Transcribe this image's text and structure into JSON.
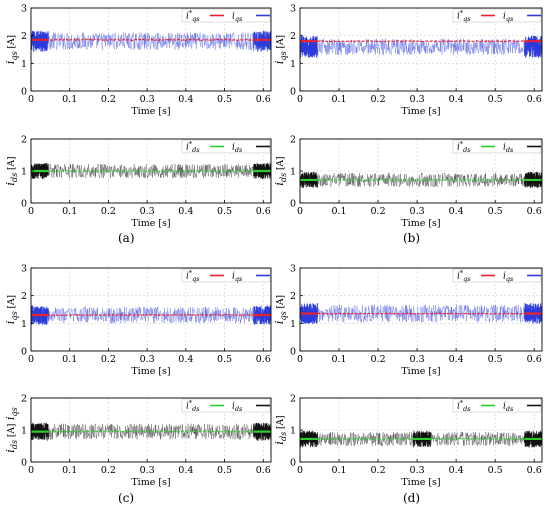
{
  "figure": {
    "panel_labels": [
      "(a)",
      "(b)",
      "(c)",
      "(d)"
    ]
  },
  "chart_data": [
    {
      "id": "a-top",
      "panel": "(a)",
      "type": "line",
      "xlabel": "Time [s]",
      "ylabel_main": "i",
      "ylabel_sub": "qs",
      "ylabel_unit": "[A]",
      "xlim": [
        0,
        0.62
      ],
      "ylim": [
        0,
        3
      ],
      "xticks": [
        "0",
        "0.1",
        "0.2",
        "0.3",
        "0.4",
        "0.5",
        "0.6"
      ],
      "yticks": [
        "0",
        "1",
        "2",
        "3"
      ],
      "grid": true,
      "legend_position": "top-right",
      "series": [
        {
          "name": "i*qs",
          "legend_main": "i",
          "legend_sup": "*",
          "legend_sub": "qs",
          "color": "#e8212e",
          "kind": "reference",
          "mean": 1.85,
          "spread": 0.06
        },
        {
          "name": "iqs",
          "legend_main": "i",
          "legend_sup": "",
          "legend_sub": "qs",
          "color": "#2b3bdb",
          "kind": "measured",
          "mean": 1.8,
          "spread": 0.32,
          "dense_spread": 0.38,
          "dense_windows": [
            [
              0,
              0.045
            ],
            [
              0.575,
              0.62
            ]
          ]
        }
      ]
    },
    {
      "id": "a-bottom",
      "panel": "(a)",
      "type": "line",
      "xlabel": "Time [s]",
      "ylabel_main": "i",
      "ylabel_sub": "ds",
      "ylabel_unit": "[A]",
      "xlim": [
        0,
        0.62
      ],
      "ylim": [
        0,
        2
      ],
      "xticks": [
        "0",
        "0.1",
        "0.2",
        "0.3",
        "0.4",
        "0.5",
        "0.6"
      ],
      "yticks": [
        "0",
        "1",
        "2"
      ],
      "grid": true,
      "legend_position": "top-right",
      "series": [
        {
          "name": "i*ds",
          "legend_main": "i",
          "legend_sup": "*",
          "legend_sub": "ds",
          "color": "#2ecc2e",
          "kind": "reference",
          "mean": 1.0,
          "spread": 0.03
        },
        {
          "name": "ids",
          "legend_main": "i",
          "legend_sup": "",
          "legend_sub": "ds",
          "color": "#111111",
          "kind": "measured",
          "mean": 1.0,
          "spread": 0.22,
          "dense_spread": 0.25,
          "dense_windows": [
            [
              0,
              0.045
            ],
            [
              0.575,
              0.62
            ]
          ]
        }
      ]
    },
    {
      "id": "b-top",
      "panel": "(b)",
      "type": "line",
      "xlabel": "Time [s]",
      "ylabel_main": "i",
      "ylabel_sub": "qs",
      "ylabel_unit": "[A]",
      "xlim": [
        0,
        0.62
      ],
      "ylim": [
        0,
        3
      ],
      "xticks": [
        "0",
        "0.1",
        "0.2",
        "0.3",
        "0.4",
        "0.5",
        "0.6"
      ],
      "yticks": [
        "0",
        "1",
        "2",
        "3"
      ],
      "grid": true,
      "legend_position": "top-right",
      "series": [
        {
          "name": "i*qs",
          "legend_main": "i",
          "legend_sup": "*",
          "legend_sub": "qs",
          "color": "#e8212e",
          "kind": "reference",
          "mean": 1.8,
          "spread": 0.05
        },
        {
          "name": "iqs",
          "legend_main": "i",
          "legend_sup": "",
          "legend_sub": "qs",
          "color": "#2b3bdb",
          "kind": "measured",
          "mean": 1.6,
          "spread": 0.3,
          "dense_spread": 0.4,
          "dense_windows": [
            [
              0,
              0.045
            ],
            [
              0.575,
              0.62
            ]
          ]
        }
      ]
    },
    {
      "id": "b-bottom",
      "panel": "(b)",
      "type": "line",
      "xlabel": "Time [s]",
      "ylabel_main": "i",
      "ylabel_sub": "ds",
      "ylabel_unit": "[A]",
      "xlim": [
        0,
        0.62
      ],
      "ylim": [
        0,
        2
      ],
      "xticks": [
        "0",
        "0.1",
        "0.2",
        "0.3",
        "0.4",
        "0.5",
        "0.6"
      ],
      "yticks": [
        "0",
        "1",
        "2"
      ],
      "grid": true,
      "legend_position": "top-right",
      "series": [
        {
          "name": "i*ds",
          "legend_main": "i",
          "legend_sup": "*",
          "legend_sub": "ds",
          "color": "#2ecc2e",
          "kind": "reference",
          "mean": 0.72,
          "spread": 0.03
        },
        {
          "name": "ids",
          "legend_main": "i",
          "legend_sup": "",
          "legend_sub": "ds",
          "color": "#111111",
          "kind": "measured",
          "mean": 0.72,
          "spread": 0.22,
          "dense_spread": 0.25,
          "dense_windows": [
            [
              0,
              0.045
            ],
            [
              0.575,
              0.62
            ]
          ]
        }
      ]
    },
    {
      "id": "c-top",
      "panel": "(c)",
      "type": "line",
      "xlabel": "Time [s]",
      "ylabel_main": "i",
      "ylabel_sub": "qs",
      "ylabel_unit": "[A]",
      "xlim": [
        0,
        0.62
      ],
      "ylim": [
        0,
        3
      ],
      "xticks": [
        "0",
        "0.1",
        "0.2",
        "0.3",
        "0.4",
        "0.5",
        "0.6"
      ],
      "yticks": [
        "0",
        "1",
        "2",
        "3"
      ],
      "grid": true,
      "legend_position": "top-right",
      "series": [
        {
          "name": "i*qs",
          "legend_main": "i",
          "legend_sup": "*",
          "legend_sub": "qs",
          "color": "#e8212e",
          "kind": "reference",
          "mean": 1.3,
          "spread": 0.04
        },
        {
          "name": "iqs",
          "legend_main": "i",
          "legend_sup": "",
          "legend_sub": "qs",
          "color": "#2b3bdb",
          "kind": "measured",
          "mean": 1.3,
          "spread": 0.3,
          "dense_spread": 0.35,
          "dense_windows": [
            [
              0,
              0.045
            ],
            [
              0.575,
              0.62
            ]
          ]
        }
      ]
    },
    {
      "id": "c-bottom",
      "panel": "(c)",
      "type": "line",
      "xlabel": "Time [s]",
      "ylabel_main": "i",
      "ylabel_sub": "ds",
      "ylabel_unit": "[A]",
      "ylabel_extra_main": "i",
      "ylabel_extra_sub": "qs",
      "xlim": [
        0,
        0.62
      ],
      "ylim": [
        0,
        2
      ],
      "xticks": [
        "0",
        "0.1",
        "0.2",
        "0.3",
        "0.4",
        "0.5",
        "0.6"
      ],
      "yticks": [
        "0",
        "1",
        "2"
      ],
      "grid": true,
      "legend_position": "top-right",
      "series": [
        {
          "name": "i*ds",
          "legend_main": "i",
          "legend_sup": "*",
          "legend_sub": "ds",
          "color": "#2ecc2e",
          "kind": "reference",
          "mean": 0.95,
          "spread": 0.03
        },
        {
          "name": "ids",
          "legend_main": "i",
          "legend_sup": "",
          "legend_sub": "ds",
          "color": "#111111",
          "kind": "measured",
          "mean": 0.95,
          "spread": 0.25,
          "dense_spread": 0.28,
          "dense_windows": [
            [
              0,
              0.045
            ],
            [
              0.575,
              0.62
            ]
          ]
        }
      ]
    },
    {
      "id": "d-top",
      "panel": "(d)",
      "type": "line",
      "xlabel": "Time [s]",
      "ylabel_main": "i",
      "ylabel_sub": "qs",
      "ylabel_unit": "[A]",
      "xlim": [
        0,
        0.62
      ],
      "ylim": [
        0,
        3
      ],
      "xticks": [
        "0",
        "0.1",
        "0.2",
        "0.3",
        "0.4",
        "0.5",
        "0.6"
      ],
      "yticks": [
        "0",
        "1",
        "2",
        "3"
      ],
      "grid": true,
      "legend_position": "top-right",
      "series": [
        {
          "name": "i*qs",
          "legend_main": "i",
          "legend_sup": "*",
          "legend_sub": "qs",
          "color": "#e8212e",
          "kind": "reference",
          "mean": 1.35,
          "spread": 0.04
        },
        {
          "name": "iqs",
          "legend_main": "i",
          "legend_sup": "",
          "legend_sub": "qs",
          "color": "#2b3bdb",
          "kind": "measured",
          "mean": 1.35,
          "spread": 0.32,
          "dense_spread": 0.38,
          "dense_windows": [
            [
              0,
              0.045
            ],
            [
              0.575,
              0.62
            ]
          ]
        }
      ]
    },
    {
      "id": "d-bottom",
      "panel": "(d)",
      "type": "line",
      "xlabel": "Time [s]",
      "ylabel_main": "i",
      "ylabel_sub": "ds",
      "ylabel_unit": "[A]",
      "xlim": [
        0,
        0.62
      ],
      "ylim": [
        0,
        2
      ],
      "xticks": [
        "0",
        "0.1",
        "0.2",
        "0.3",
        "0.4",
        "0.5",
        "0.6"
      ],
      "yticks": [
        "0",
        "1",
        "2"
      ],
      "grid": true,
      "legend_position": "top-right",
      "series": [
        {
          "name": "i*ds",
          "legend_main": "i",
          "legend_sup": "*",
          "legend_sub": "ds",
          "color": "#2ecc2e",
          "kind": "reference",
          "mean": 0.72,
          "spread": 0.03
        },
        {
          "name": "ids",
          "legend_main": "i",
          "legend_sup": "",
          "legend_sub": "ds",
          "color": "#111111",
          "kind": "measured",
          "mean": 0.72,
          "spread": 0.22,
          "dense_spread": 0.26,
          "dense_windows": [
            [
              0,
              0.045
            ],
            [
              0.29,
              0.335
            ],
            [
              0.575,
              0.62
            ]
          ]
        }
      ]
    }
  ]
}
